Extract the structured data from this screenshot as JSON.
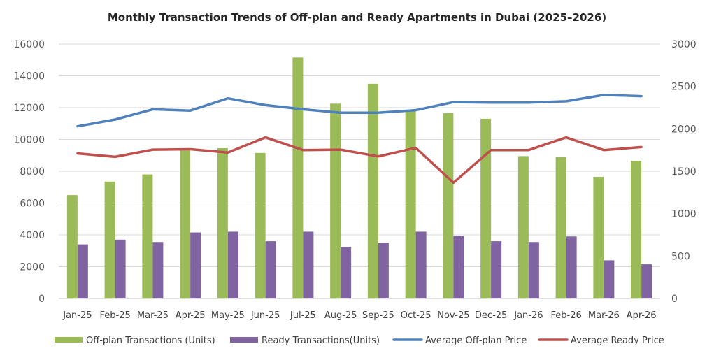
{
  "chart_data": {
    "type": "bar",
    "title": "Monthly Transaction Trends of Off-plan and Ready Apartments in Dubai (2025–2026)",
    "categories": [
      "Jan-25",
      "Feb-25",
      "Mar-25",
      "Apr-25",
      "May-25",
      "Jun-25",
      "Jul-25",
      "Aug-25",
      "Sep-25",
      "Oct-25",
      "Nov-25",
      "Dec-25",
      "Jan-26",
      "Feb-26",
      "Mar-26",
      "Apr-26"
    ],
    "y_left": {
      "min": 0,
      "max": 16000,
      "step": 2000,
      "ticks": [
        "0",
        "2000",
        "4000",
        "6000",
        "8000",
        "10000",
        "12000",
        "14000",
        "16000"
      ]
    },
    "y_right": {
      "min": 0,
      "max": 3000,
      "step": 500,
      "ticks": [
        "0",
        "500",
        "1000",
        "1500",
        "2000",
        "2500",
        "3000"
      ]
    },
    "grid": true,
    "legend_position": "bottom",
    "series": [
      {
        "name": "Off-plan Transactions (Units)",
        "type": "bar",
        "axis": "left",
        "color": "#9BBB59",
        "values": [
          6500,
          7350,
          7800,
          9300,
          9450,
          9150,
          15150,
          12250,
          13500,
          11800,
          11650,
          11300,
          8950,
          8900,
          7650,
          8650
        ]
      },
      {
        "name": "Ready Transactions(Units)",
        "type": "bar",
        "axis": "left",
        "color": "#8064A2",
        "values": [
          3400,
          3700,
          3550,
          4150,
          4200,
          3600,
          4200,
          3250,
          3500,
          4200,
          3950,
          3600,
          3550,
          3900,
          2400,
          2150
        ]
      },
      {
        "name": "Average Off-plan Price",
        "type": "line",
        "axis": "right",
        "color": "#4F81BD",
        "values": [
          2030,
          2110,
          2230,
          2215,
          2360,
          2280,
          2230,
          2190,
          2190,
          2220,
          2315,
          2310,
          2310,
          2325,
          2400,
          2385
        ]
      },
      {
        "name": "Average Ready Price",
        "type": "line",
        "axis": "right",
        "color": "#C0504D",
        "values": [
          1710,
          1670,
          1755,
          1760,
          1720,
          1900,
          1750,
          1755,
          1675,
          1775,
          1365,
          1750,
          1750,
          1900,
          1750,
          1785
        ]
      }
    ]
  }
}
